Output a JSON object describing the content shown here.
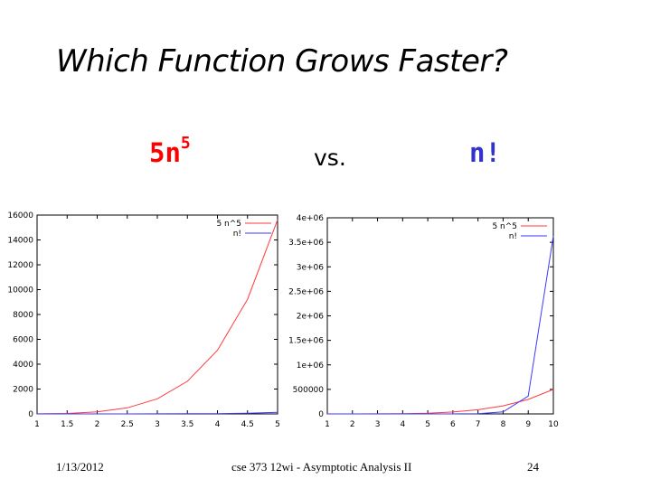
{
  "slide": {
    "title": "Which Function Grows Faster?",
    "left_expr_base": "5n",
    "left_expr_exp": "5",
    "vs_text": "vs.",
    "right_expr": "n!",
    "colors": {
      "left_expr": "#ff0000",
      "right_expr": "#3333cc",
      "series_5n5": "#ff3b3b",
      "series_nfact": "#3a3aff"
    }
  },
  "footer": {
    "date": "1/13/2012",
    "course": "cse 373 12wi - Asymptotic Analysis II",
    "page": "24"
  },
  "chart_data": [
    {
      "type": "line",
      "xlim": [
        1,
        5
      ],
      "ylim": [
        0,
        16000
      ],
      "x_ticks": [
        1,
        1.5,
        2,
        2.5,
        3,
        3.5,
        4,
        4.5,
        5
      ],
      "x_tick_labels": [
        "1",
        "1.5",
        "2",
        "2.5",
        "3",
        "3.5",
        "4",
        "4.5",
        "5"
      ],
      "y_ticks": [
        0,
        2000,
        4000,
        6000,
        8000,
        10000,
        12000,
        14000,
        16000
      ],
      "y_tick_labels": [
        "0",
        "2000",
        "4000",
        "6000",
        "8000",
        "10000",
        "12000",
        "14000",
        "16000"
      ],
      "legend_position": "top-right",
      "series": [
        {
          "name": "5 n^5",
          "color": "#ff3b3b",
          "x": [
            1,
            1.5,
            2,
            2.5,
            3,
            3.5,
            4,
            4.5,
            5
          ],
          "y": [
            5,
            38,
            160,
            488,
            1215,
            2626,
            5120,
            9226,
            15625
          ]
        },
        {
          "name": "n!",
          "color": "#3a3aff",
          "x": [
            1,
            1.5,
            2,
            2.5,
            3,
            3.5,
            4,
            4.5,
            5
          ],
          "y": [
            1,
            1.3,
            2,
            3.3,
            6,
            11.6,
            24,
            52.3,
            120
          ]
        }
      ]
    },
    {
      "type": "line",
      "xlim": [
        1,
        10
      ],
      "ylim": [
        0,
        4000000
      ],
      "x_ticks": [
        1,
        2,
        3,
        4,
        5,
        6,
        7,
        8,
        9,
        10
      ],
      "x_tick_labels": [
        "1",
        "2",
        "3",
        "4",
        "5",
        "6",
        "7",
        "8",
        "9",
        "10"
      ],
      "y_ticks": [
        0,
        500000,
        1000000,
        1500000,
        2000000,
        2500000,
        3000000,
        3500000,
        4000000
      ],
      "y_tick_labels": [
        "0",
        "500000",
        "1e+06",
        "1.5e+06",
        "2e+06",
        "2.5e+06",
        "3e+06",
        "3.5e+06",
        "4e+06"
      ],
      "legend_position": "top-right",
      "series": [
        {
          "name": "5 n^5",
          "color": "#ff3b3b",
          "x": [
            1,
            2,
            3,
            4,
            5,
            6,
            7,
            8,
            9,
            10
          ],
          "y": [
            5,
            160,
            1215,
            5120,
            15625,
            38880,
            84035,
            163840,
            295245,
            500000
          ]
        },
        {
          "name": "n!",
          "color": "#3a3aff",
          "x": [
            1,
            2,
            3,
            4,
            5,
            6,
            7,
            8,
            9,
            10
          ],
          "y": [
            1,
            2,
            6,
            24,
            120,
            720,
            5040,
            40320,
            362880,
            3628800
          ]
        }
      ]
    }
  ]
}
